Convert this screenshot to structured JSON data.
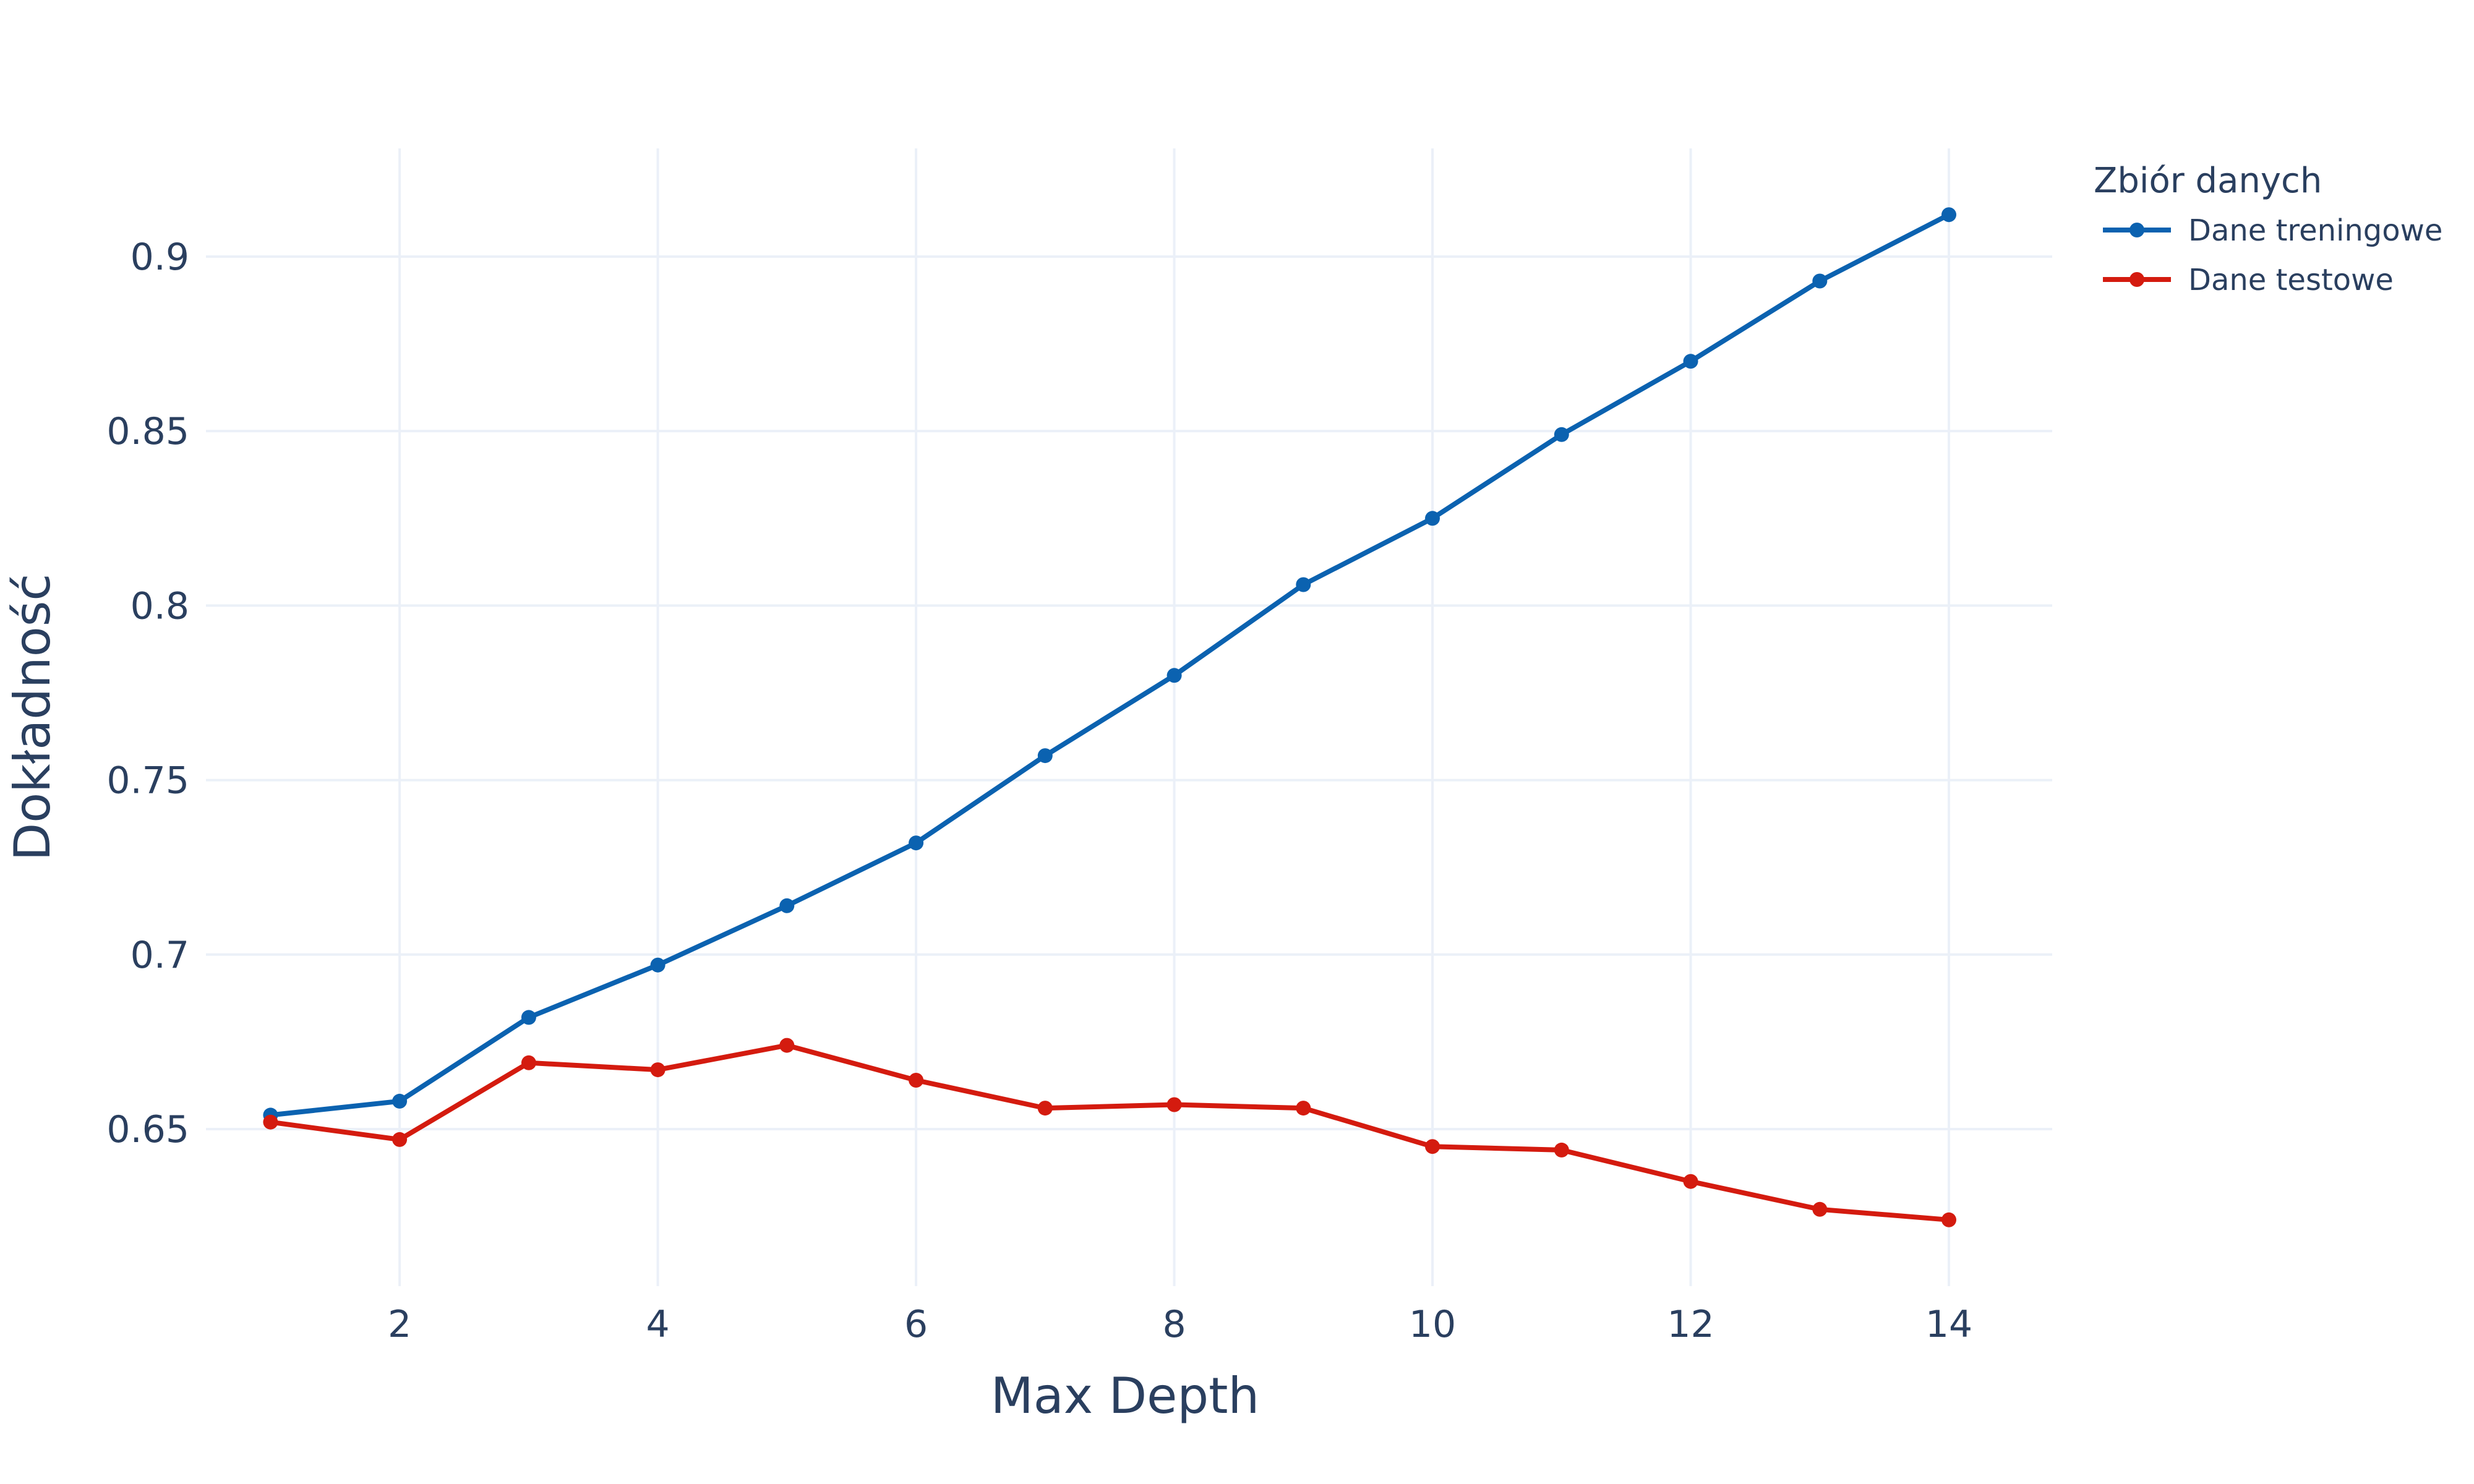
{
  "chart_data": {
    "type": "line",
    "title": "",
    "xlabel": "Max Depth",
    "ylabel": "Dokładność",
    "xlim": [
      0.5,
      14.8
    ],
    "ylim": [
      0.605,
      0.931
    ],
    "x_ticks": [
      2,
      4,
      6,
      8,
      10,
      12,
      14
    ],
    "y_ticks": [
      0.65,
      0.7,
      0.75,
      0.8,
      0.85,
      0.9
    ],
    "grid": true,
    "legend": {
      "title": "Zbiór danych",
      "placement": "top-right outside"
    },
    "x": [
      1,
      2,
      3,
      4,
      5,
      6,
      7,
      8,
      9,
      10,
      11,
      12,
      13,
      14
    ],
    "series": [
      {
        "name": "Dane treningowe",
        "color": "#0b62b0",
        "values": [
          0.654,
          0.658,
          0.682,
          0.697,
          0.714,
          0.732,
          0.757,
          0.78,
          0.806,
          0.825,
          0.849,
          0.87,
          0.893,
          0.912
        ]
      },
      {
        "name": "Dane testowe",
        "color": "#d41b0f",
        "values": [
          0.652,
          0.647,
          0.669,
          0.667,
          0.674,
          0.664,
          0.656,
          0.657,
          0.656,
          0.645,
          0.644,
          0.635,
          0.627,
          0.624
        ]
      }
    ]
  },
  "colors": {
    "text": "#2a3f5f",
    "grid": "#ebf0f8",
    "background": "#ffffff"
  }
}
